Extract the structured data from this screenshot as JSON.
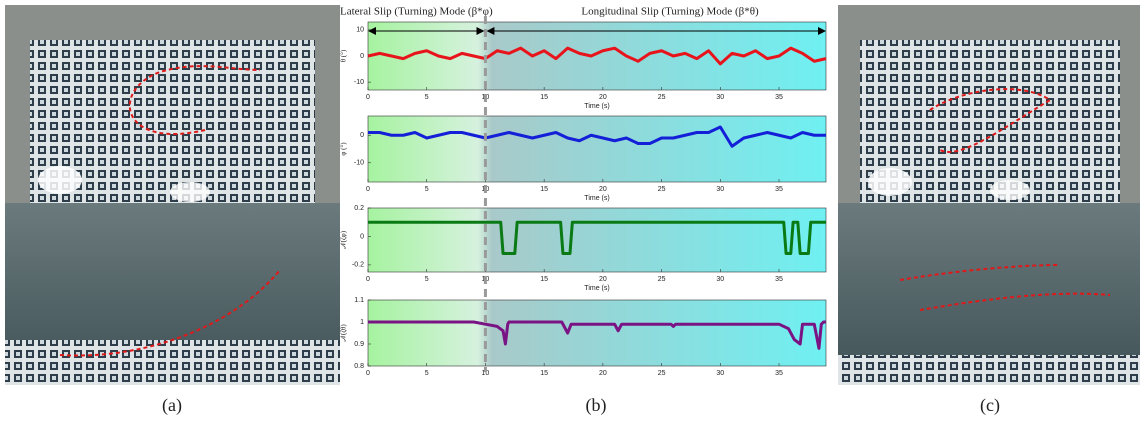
{
  "annotations": {
    "lateral": "Lateral Slip (Turning) Mode (β*φ)",
    "longitudinal": "Longitudinal Slip (Turning) Mode (β*θ)"
  },
  "mode_switch_time": 10,
  "captions": [
    "(a)",
    "(b)",
    "(c)"
  ],
  "chart_data": [
    {
      "type": "line",
      "ylabel": "θ (°)",
      "xlabel": "Time (s)",
      "x": [
        0,
        1,
        2,
        3,
        4,
        5,
        6,
        7,
        8,
        9,
        10,
        11,
        12,
        13,
        14,
        15,
        16,
        17,
        18,
        19,
        20,
        21,
        22,
        23,
        24,
        25,
        26,
        27,
        28,
        29,
        30,
        31,
        32,
        33,
        34,
        35,
        36,
        37,
        38,
        39
      ],
      "series": [
        {
          "color": "#e8141c",
          "values": [
            0,
            1,
            0,
            -1,
            1,
            2,
            0,
            -1,
            1,
            0,
            -1,
            2,
            1,
            3,
            0,
            2,
            -1,
            3,
            1,
            0,
            2,
            3,
            0,
            -2,
            1,
            2,
            0,
            1,
            -1,
            2,
            -3,
            1,
            0,
            2,
            -1,
            0,
            3,
            1,
            -2,
            -1
          ]
        }
      ],
      "xlim": [
        0,
        39
      ],
      "xticks": [
        0,
        5,
        10,
        15,
        20,
        25,
        30,
        35
      ],
      "ylim": [
        -13,
        13
      ],
      "yticks": [
        -10,
        0,
        10
      ]
    },
    {
      "type": "line",
      "ylabel": "φ (°)",
      "xlabel": "Time (s)",
      "x": [
        0,
        1,
        2,
        3,
        4,
        5,
        6,
        7,
        8,
        9,
        10,
        11,
        12,
        13,
        14,
        15,
        16,
        17,
        18,
        19,
        20,
        21,
        22,
        23,
        24,
        25,
        26,
        27,
        28,
        29,
        30,
        31,
        32,
        33,
        34,
        35,
        36,
        37,
        38,
        39
      ],
      "series": [
        {
          "color": "#1420d8",
          "values": [
            1,
            1,
            0,
            0,
            1,
            -1,
            0,
            1,
            1,
            0,
            -1,
            0,
            1,
            0,
            -1,
            0,
            1,
            -1,
            -2,
            0,
            -1,
            -2,
            -1,
            -3,
            -3,
            -1,
            -1,
            0,
            1,
            1,
            3,
            -4,
            -1,
            0,
            1,
            0,
            -1,
            1,
            0,
            0
          ]
        }
      ],
      "xlim": [
        0,
        39
      ],
      "xticks": [
        0,
        5,
        10,
        15,
        20,
        25,
        30,
        35
      ],
      "ylim": [
        -17,
        7
      ],
      "yticks": [
        -10,
        0
      ]
    },
    {
      "type": "line",
      "ylabel": "𝒩(ζφ)",
      "xlabel": "Time (s)",
      "x": [
        0,
        11.3,
        11.5,
        12.5,
        12.7,
        16.4,
        16.6,
        17.2,
        17.4,
        35.4,
        35.6,
        36.0,
        36.2,
        36.6,
        36.8,
        37.5,
        37.7,
        39
      ],
      "series": [
        {
          "color": "#0a7a14",
          "values": [
            0.1,
            0.1,
            -0.12,
            -0.12,
            0.1,
            0.1,
            -0.12,
            -0.12,
            0.1,
            0.1,
            -0.12,
            -0.12,
            0.1,
            0.1,
            -0.12,
            -0.12,
            0.1,
            0.1
          ]
        }
      ],
      "xlim": [
        0,
        39
      ],
      "xticks": [
        0,
        5,
        10,
        15,
        20,
        25,
        30,
        35
      ],
      "ylim": [
        -0.25,
        0.2
      ],
      "yticks": [
        -0.2,
        0,
        0.2
      ]
    },
    {
      "type": "line",
      "ylabel": "𝒩(ζθ)",
      "x": [
        0,
        5,
        9,
        10,
        11,
        11.5,
        11.7,
        11.9,
        12,
        16.5,
        17,
        17.3,
        21,
        21.3,
        21.6,
        25.8,
        26,
        26.2,
        35,
        35.8,
        36.3,
        36.8,
        37,
        38,
        38.4,
        38.6,
        38.8,
        39
      ],
      "series": [
        {
          "color": "#7a1484",
          "values": [
            1,
            1,
            1,
            0.99,
            0.98,
            0.96,
            0.9,
            0.99,
            1,
            1,
            0.95,
            0.99,
            0.99,
            0.96,
            0.99,
            0.99,
            0.98,
            0.99,
            0.99,
            0.97,
            0.92,
            0.9,
            0.99,
            0.99,
            0.88,
            0.99,
            1,
            1
          ]
        }
      ],
      "xlim": [
        0,
        39
      ],
      "xticks": [
        0,
        5,
        10,
        15,
        20,
        25,
        30,
        35
      ],
      "ylim": [
        0.8,
        1.1
      ],
      "yticks": [
        0.8,
        0.9,
        1,
        1.1
      ]
    }
  ]
}
